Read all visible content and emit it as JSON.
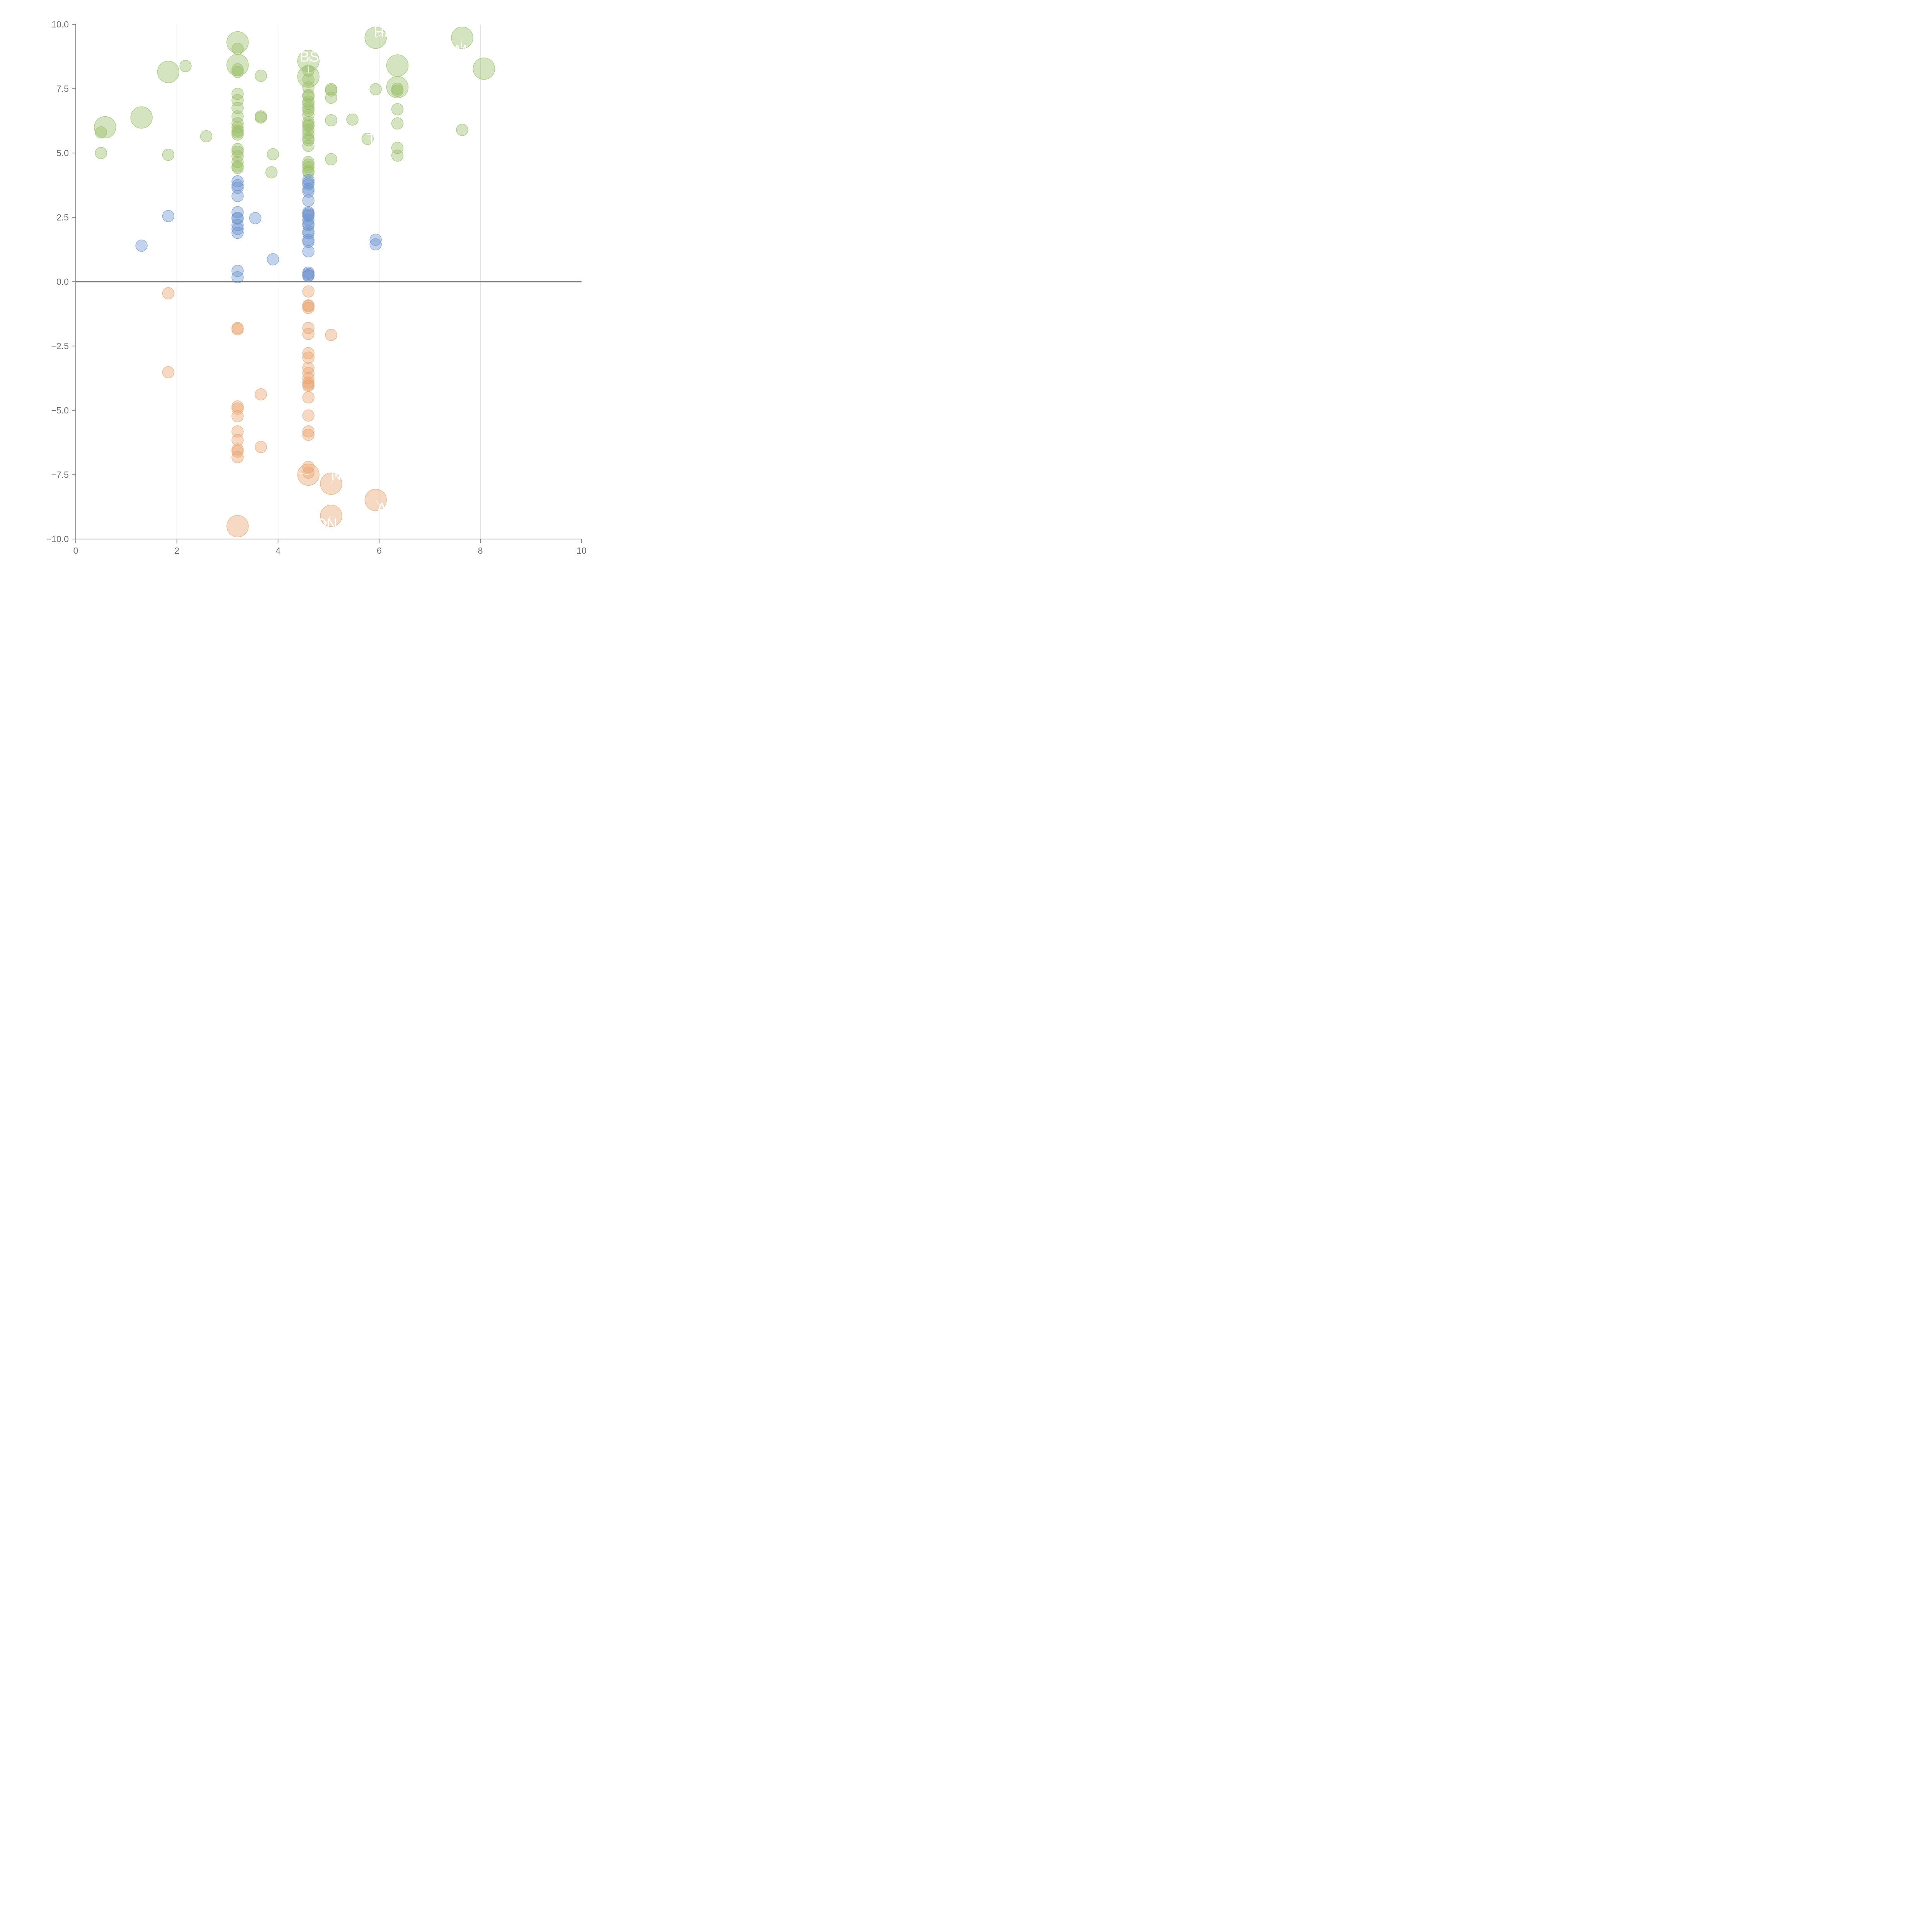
{
  "chart_data": {
    "type": "scatter",
    "title": "",
    "xlabel": "",
    "ylabel": "",
    "xlim": [
      0,
      10
    ],
    "ylim": [
      -10,
      10
    ],
    "x_ticks": [
      {
        "value": 0,
        "label": "0"
      },
      {
        "value": 2,
        "label": "2"
      },
      {
        "value": 4,
        "label": "4"
      },
      {
        "value": 6,
        "label": "6"
      },
      {
        "value": 8,
        "label": "8"
      },
      {
        "value": 10,
        "label": "10"
      }
    ],
    "y_ticks": [
      {
        "value": 10,
        "label": "10.0"
      },
      {
        "value": 7.5,
        "label": "7.5"
      },
      {
        "value": 5,
        "label": "5.0"
      },
      {
        "value": 2.5,
        "label": "2.5"
      },
      {
        "value": 0,
        "label": "0.0"
      },
      {
        "value": -2.5,
        "label": "−2.5"
      },
      {
        "value": -5,
        "label": "−5.0"
      },
      {
        "value": -7.5,
        "label": "−7.5"
      },
      {
        "value": -10,
        "label": "−10.0"
      }
    ],
    "vertical_grid": [
      2,
      4,
      6,
      8
    ],
    "zero_line": 0,
    "series": [
      {
        "name": "green",
        "color": "#9bbf6a",
        "points": [
          [
            0.58,
            6.0,
            2
          ],
          [
            1.3,
            6.38,
            2
          ],
          [
            1.83,
            8.15,
            2
          ],
          [
            3.2,
            9.3,
            2
          ],
          [
            3.2,
            8.42,
            2
          ],
          [
            4.6,
            8.58,
            2
          ],
          [
            4.6,
            7.97,
            2
          ],
          [
            5.93,
            9.48,
            2
          ],
          [
            6.36,
            8.4,
            2
          ],
          [
            6.36,
            7.56,
            2
          ],
          [
            7.64,
            9.48,
            2
          ],
          [
            8.07,
            8.28,
            2
          ],
          [
            0.5,
            5.8,
            1
          ],
          [
            0.5,
            5.0,
            1
          ],
          [
            1.83,
            4.93,
            1
          ],
          [
            2.17,
            8.38,
            1
          ],
          [
            2.58,
            5.65,
            1
          ],
          [
            3.2,
            9.05,
            1
          ],
          [
            3.2,
            8.25,
            1
          ],
          [
            3.2,
            8.15,
            1
          ],
          [
            3.2,
            7.3,
            1
          ],
          [
            3.2,
            7.05,
            1
          ],
          [
            3.2,
            6.75,
            1
          ],
          [
            3.2,
            6.42,
            1
          ],
          [
            3.2,
            6.15,
            1
          ],
          [
            3.2,
            6.0,
            1
          ],
          [
            3.2,
            5.87,
            1
          ],
          [
            3.2,
            5.8,
            1
          ],
          [
            3.2,
            5.72,
            1
          ],
          [
            3.2,
            5.15,
            1
          ],
          [
            3.2,
            5.05,
            1
          ],
          [
            3.2,
            4.88,
            1
          ],
          [
            3.2,
            4.65,
            1
          ],
          [
            3.2,
            4.48,
            1
          ],
          [
            3.2,
            4.42,
            1
          ],
          [
            3.66,
            8.0,
            1
          ],
          [
            3.66,
            6.42,
            1
          ],
          [
            3.66,
            6.38,
            1
          ],
          [
            3.87,
            4.25,
            1
          ],
          [
            3.9,
            4.95,
            1
          ],
          [
            4.6,
            8.2,
            1
          ],
          [
            4.6,
            7.85,
            1
          ],
          [
            4.6,
            7.55,
            1
          ],
          [
            4.6,
            7.25,
            1
          ],
          [
            4.6,
            7.2,
            1
          ],
          [
            4.6,
            7.0,
            1
          ],
          [
            4.6,
            6.9,
            1
          ],
          [
            4.6,
            6.75,
            1
          ],
          [
            4.6,
            6.65,
            1
          ],
          [
            4.6,
            6.48,
            1
          ],
          [
            4.6,
            6.2,
            1
          ],
          [
            4.6,
            6.1,
            1
          ],
          [
            4.6,
            6.05,
            1
          ],
          [
            4.6,
            5.9,
            1
          ],
          [
            4.6,
            5.75,
            1
          ],
          [
            4.6,
            5.58,
            1
          ],
          [
            4.6,
            5.5,
            1
          ],
          [
            4.6,
            5.28,
            1
          ],
          [
            4.6,
            4.65,
            1
          ],
          [
            4.6,
            4.55,
            1
          ],
          [
            4.6,
            4.45,
            1
          ],
          [
            4.6,
            4.3,
            1
          ],
          [
            4.6,
            4.25,
            1
          ],
          [
            5.05,
            7.48,
            1
          ],
          [
            5.05,
            7.43,
            1
          ],
          [
            5.05,
            7.15,
            1
          ],
          [
            5.05,
            6.27,
            1
          ],
          [
            5.05,
            4.76,
            1
          ],
          [
            5.47,
            6.3,
            1
          ],
          [
            5.77,
            5.55,
            1
          ],
          [
            5.93,
            7.48,
            1
          ],
          [
            6.36,
            7.5,
            1
          ],
          [
            6.36,
            7.42,
            1
          ],
          [
            6.36,
            6.7,
            1
          ],
          [
            6.36,
            6.15,
            1
          ],
          [
            6.36,
            5.2,
            1
          ],
          [
            6.36,
            4.9,
            1
          ],
          [
            7.64,
            5.9,
            1
          ]
        ]
      },
      {
        "name": "blue",
        "color": "#6f96cf",
        "points": [
          [
            1.3,
            1.4,
            1
          ],
          [
            1.83,
            2.55,
            1
          ],
          [
            3.2,
            3.9,
            1
          ],
          [
            3.2,
            3.75,
            1
          ],
          [
            3.2,
            3.65,
            1
          ],
          [
            3.2,
            3.33,
            1
          ],
          [
            3.2,
            2.7,
            1
          ],
          [
            3.2,
            2.48,
            1
          ],
          [
            3.2,
            2.45,
            1
          ],
          [
            3.2,
            2.2,
            1
          ],
          [
            3.2,
            2.05,
            1
          ],
          [
            3.2,
            1.9,
            1
          ],
          [
            3.2,
            0.42,
            1
          ],
          [
            3.2,
            0.17,
            1
          ],
          [
            3.55,
            2.47,
            1
          ],
          [
            3.9,
            0.87,
            1
          ],
          [
            4.6,
            3.95,
            1
          ],
          [
            4.6,
            3.85,
            1
          ],
          [
            4.6,
            3.78,
            1
          ],
          [
            4.6,
            3.6,
            1
          ],
          [
            4.6,
            3.5,
            1
          ],
          [
            4.6,
            3.15,
            1
          ],
          [
            4.6,
            2.7,
            1
          ],
          [
            4.6,
            2.65,
            1
          ],
          [
            4.6,
            2.6,
            1
          ],
          [
            4.6,
            2.55,
            1
          ],
          [
            4.6,
            2.4,
            1
          ],
          [
            4.6,
            2.25,
            1
          ],
          [
            4.6,
            2.2,
            1
          ],
          [
            4.6,
            1.95,
            1
          ],
          [
            4.6,
            1.88,
            1
          ],
          [
            4.6,
            1.62,
            1
          ],
          [
            4.6,
            1.55,
            1
          ],
          [
            4.6,
            1.18,
            1
          ],
          [
            4.6,
            0.35,
            1
          ],
          [
            4.6,
            0.3,
            1
          ],
          [
            4.6,
            0.25,
            1
          ],
          [
            4.6,
            0.22,
            1
          ],
          [
            5.93,
            1.63,
            1
          ],
          [
            5.93,
            1.45,
            1
          ]
        ]
      },
      {
        "name": "orange",
        "color": "#e9a571",
        "points": [
          [
            3.2,
            -9.5,
            2
          ],
          [
            4.6,
            -7.5,
            2
          ],
          [
            5.05,
            -7.85,
            2
          ],
          [
            5.05,
            -9.1,
            2
          ],
          [
            5.93,
            -8.48,
            2
          ],
          [
            1.83,
            -0.45,
            1
          ],
          [
            1.83,
            -3.52,
            1
          ],
          [
            3.2,
            -1.8,
            1
          ],
          [
            3.2,
            -1.85,
            1
          ],
          [
            3.2,
            -4.85,
            1
          ],
          [
            3.2,
            -4.93,
            1
          ],
          [
            3.2,
            -5.23,
            1
          ],
          [
            3.2,
            -5.82,
            1
          ],
          [
            3.2,
            -6.15,
            1
          ],
          [
            3.2,
            -6.52,
            1
          ],
          [
            3.2,
            -6.6,
            1
          ],
          [
            3.2,
            -6.82,
            1
          ],
          [
            3.66,
            -4.38,
            1
          ],
          [
            3.66,
            -6.42,
            1
          ],
          [
            4.6,
            -0.38,
            1
          ],
          [
            4.6,
            -0.92,
            1
          ],
          [
            4.6,
            -0.95,
            1
          ],
          [
            4.6,
            -1.02,
            1
          ],
          [
            4.6,
            -1.8,
            1
          ],
          [
            4.6,
            -2.03,
            1
          ],
          [
            4.6,
            -2.78,
            1
          ],
          [
            4.6,
            -2.95,
            1
          ],
          [
            4.6,
            -3.35,
            1
          ],
          [
            4.6,
            -3.55,
            1
          ],
          [
            4.6,
            -3.75,
            1
          ],
          [
            4.6,
            -3.92,
            1
          ],
          [
            4.6,
            -4.0,
            1
          ],
          [
            4.6,
            -4.05,
            1
          ],
          [
            4.6,
            -4.5,
            1
          ],
          [
            4.6,
            -5.2,
            1
          ],
          [
            4.6,
            -5.82,
            1
          ],
          [
            4.6,
            -5.95,
            1
          ],
          [
            4.6,
            -7.2,
            1
          ],
          [
            4.6,
            -7.42,
            1
          ],
          [
            5.05,
            -2.07,
            1
          ]
        ]
      }
    ],
    "annotations": [
      {
        "text": "HR",
        "x": 6.1,
        "y": 9.7,
        "lx": 5.93,
        "ly": 9.48
      },
      {
        "text": "BS",
        "x": 4.62,
        "y": 8.75,
        "lx": 4.6,
        "ly": 8.1
      },
      {
        "text": "M",
        "x": 7.62,
        "y": 9.0,
        "lx": 7.64,
        "ly": 9.48
      },
      {
        "text": "T",
        "x": 5.85,
        "y": 5.55,
        "lx": 5.77,
        "ly": 5.55
      },
      {
        "text": "R",
        "x": 4.3,
        "y": -7.4,
        "lx": 4.6,
        "ly": -7.5
      },
      {
        "text": "N",
        "x": 5.15,
        "y": -7.5,
        "lx": 5.05,
        "ly": -7.85
      },
      {
        "text": "A",
        "x": 6.05,
        "y": -8.8,
        "lx": 5.93,
        "ly": -8.48
      },
      {
        "text": "ON",
        "x": 4.95,
        "y": -9.4,
        "lx": 5.05,
        "ly": -9.1
      }
    ]
  }
}
